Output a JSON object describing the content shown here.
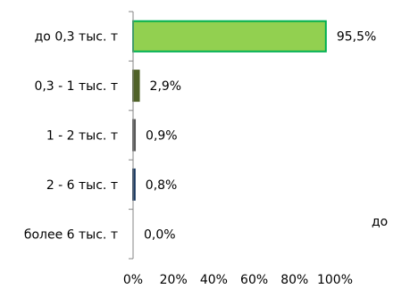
{
  "chart_data": {
    "type": "bar",
    "orientation": "horizontal",
    "categories": [
      "до 0,3 тыс. т",
      "0,3 - 1 тыс. т",
      "1 - 2 тыс. т",
      "2 - 6 тыс. т",
      "более 6 тыс. т"
    ],
    "values": [
      95.5,
      2.9,
      0.9,
      0.8,
      0.0
    ],
    "value_labels": [
      "95,5%",
      "2,9%",
      "0,9%",
      "0,8%",
      "0,0%"
    ],
    "bar_colors": [
      "#92d050",
      "#4f6228",
      "#7f7f7f",
      "#4f81bd",
      "#7f7f7f"
    ],
    "bar_outline_colors": [
      "#00b050",
      "#4f6228",
      "#595959",
      "#17375e",
      "#595959"
    ],
    "xlim": [
      0,
      100
    ],
    "xticks": [
      0,
      20,
      40,
      60,
      80,
      100
    ],
    "xtick_labels": [
      "0%",
      "20%",
      "40%",
      "60%",
      "80%",
      "100%"
    ],
    "grid": false,
    "legend_fragment": "до"
  }
}
